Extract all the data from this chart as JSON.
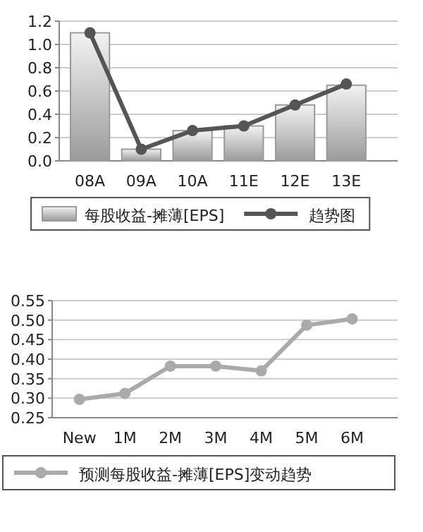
{
  "chart_data": [
    {
      "type": "bar",
      "categories": [
        "08A",
        "09A",
        "10A",
        "11E",
        "12E",
        "13E"
      ],
      "series": [
        {
          "name": "每股收益-摊薄[EPS]",
          "type": "bar",
          "color": "#9a9a9a",
          "values": [
            1.1,
            0.1,
            0.26,
            0.3,
            0.48,
            0.65
          ]
        },
        {
          "name": "趋势图",
          "type": "line",
          "color": "#555555",
          "values": [
            1.1,
            0.1,
            0.26,
            0.3,
            0.48,
            0.66
          ]
        }
      ],
      "ylim": [
        0,
        1.2
      ],
      "yticks": [
        {
          "value": 0,
          "label": "0.0"
        },
        0.2,
        0.4,
        0.6,
        0.8,
        {
          "value": 1,
          "label": "1.0"
        },
        1.2
      ],
      "grid": "y",
      "legend": "bottom",
      "marker": "circle"
    },
    {
      "type": "line",
      "categories": [
        "New",
        "1M",
        "2M",
        "3M",
        "4M",
        "5M",
        "6M"
      ],
      "series": [
        {
          "name": "预测每股收益-摊薄[EPS]变动趋势",
          "color": "#aaaaaa",
          "values": [
            0.297,
            0.312,
            0.382,
            0.382,
            0.37,
            0.487,
            0.503
          ]
        }
      ],
      "ylim": [
        0.25,
        0.55
      ],
      "yticks": [
        0.25,
        {
          "value": 0.3,
          "label": "0.30"
        },
        0.35,
        {
          "value": 0.4,
          "label": "0.40"
        },
        0.45,
        {
          "value": 0.5,
          "label": "0.50"
        },
        0.55
      ],
      "grid": "y",
      "legend": "bottom",
      "marker": "circle"
    }
  ]
}
